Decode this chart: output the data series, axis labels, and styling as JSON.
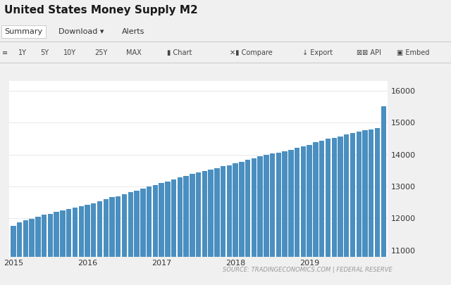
{
  "title": "United States Money Supply M2",
  "bar_color": "#4a8fc0",
  "background_color": "#f0f0f0",
  "chart_bg_color": "#ffffff",
  "ui_bg_color": "#f0f0f0",
  "tab_bg_color": "#ffffff",
  "yticks": [
    11000,
    12000,
    13000,
    14000,
    15000,
    16000
  ],
  "ylim": [
    10800,
    16300
  ],
  "source_text": "SOURCE: TRADINGECONOMICS.COM | FEDERAL RESERVE",
  "xtick_labels": [
    "2015",
    "2016",
    "2017",
    "2018",
    "2019"
  ],
  "year_positions": [
    0,
    12,
    24,
    36,
    48
  ],
  "values": [
    11760,
    11870,
    11950,
    11990,
    12050,
    12110,
    12150,
    12200,
    12250,
    12300,
    12350,
    12380,
    12430,
    12480,
    12540,
    12600,
    12660,
    12700,
    12760,
    12820,
    12870,
    12940,
    12990,
    13040,
    13100,
    13160,
    13210,
    13280,
    13340,
    13390,
    13430,
    13480,
    13530,
    13580,
    13630,
    13670,
    13720,
    13780,
    13840,
    13890,
    13940,
    14000,
    14030,
    14060,
    14100,
    14150,
    14200,
    14250,
    14300,
    14380,
    14440,
    14500,
    14520,
    14560,
    14620,
    14680,
    14720,
    14750,
    14790,
    14830,
    15500
  ],
  "title_fontsize": 11,
  "source_fontsize": 6,
  "tick_fontsize": 8,
  "tab_fontsize": 8,
  "toolbar_fontsize": 7
}
